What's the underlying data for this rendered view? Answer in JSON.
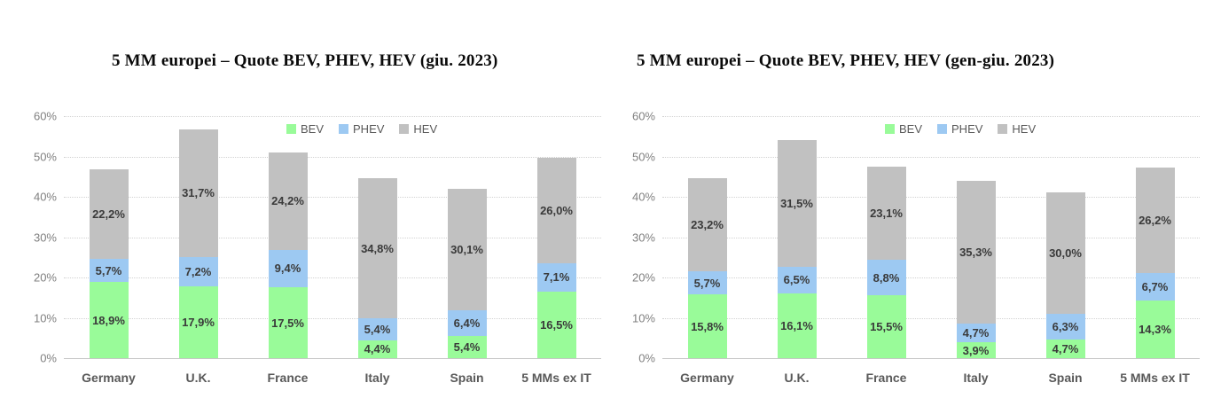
{
  "chart_data": [
    {
      "type": "bar",
      "stacked": true,
      "title": "5 MM europei – Quote BEV, PHEV, HEV (giu. 2023)",
      "categories": [
        "Germany",
        "U.K.",
        "France",
        "Italy",
        "Spain",
        "5 MMs ex IT"
      ],
      "series": [
        {
          "name": "BEV",
          "color": "#99fb99",
          "values": [
            18.9,
            17.9,
            17.5,
            4.4,
            5.4,
            16.5
          ],
          "labels": [
            "18,9%",
            "17,9%",
            "17,5%",
            "4,4%",
            "5,4%",
            "16,5%"
          ]
        },
        {
          "name": "PHEV",
          "color": "#9dc9f2",
          "values": [
            5.7,
            7.2,
            9.4,
            5.4,
            6.4,
            7.1
          ],
          "labels": [
            "5,7%",
            "7,2%",
            "9,4%",
            "5,4%",
            "6,4%",
            "7,1%"
          ]
        },
        {
          "name": "HEV",
          "color": "#c1c1c1",
          "values": [
            22.2,
            31.7,
            24.2,
            34.8,
            30.1,
            26.0
          ],
          "labels": [
            "22,2%",
            "31,7%",
            "24,2%",
            "34,8%",
            "30,1%",
            "26,0%"
          ]
        }
      ],
      "y_axis": {
        "ticks": [
          "0%",
          "10%",
          "20%",
          "30%",
          "40%",
          "50%",
          "60%"
        ],
        "min": 0,
        "max": 60
      },
      "legend_position": "top-center",
      "grid": "dotted-horizontal"
    },
    {
      "type": "bar",
      "stacked": true,
      "title": "5 MM europei – Quote BEV, PHEV, HEV (gen-giu. 2023)",
      "categories": [
        "Germany",
        "U.K.",
        "France",
        "Italy",
        "Spain",
        "5 MMs ex IT"
      ],
      "series": [
        {
          "name": "BEV",
          "color": "#99fb99",
          "values": [
            15.8,
            16.1,
            15.5,
            3.9,
            4.7,
            14.3
          ],
          "labels": [
            "15,8%",
            "16,1%",
            "15,5%",
            "3,9%",
            "4,7%",
            "14,3%"
          ]
        },
        {
          "name": "PHEV",
          "color": "#9dc9f2",
          "values": [
            5.7,
            6.5,
            8.8,
            4.7,
            6.3,
            6.7
          ],
          "labels": [
            "5,7%",
            "6,5%",
            "8,8%",
            "4,7%",
            "6,3%",
            "6,7%"
          ]
        },
        {
          "name": "HEV",
          "color": "#c1c1c1",
          "values": [
            23.2,
            31.5,
            23.1,
            35.3,
            30.0,
            26.2
          ],
          "labels": [
            "23,2%",
            "31,5%",
            "23,1%",
            "35,3%",
            "30,0%",
            "26,2%"
          ]
        }
      ],
      "y_axis": {
        "ticks": [
          "0%",
          "10%",
          "20%",
          "30%",
          "40%",
          "50%",
          "60%"
        ],
        "min": 0,
        "max": 60
      },
      "legend_position": "top-center",
      "grid": "dotted-horizontal"
    }
  ]
}
